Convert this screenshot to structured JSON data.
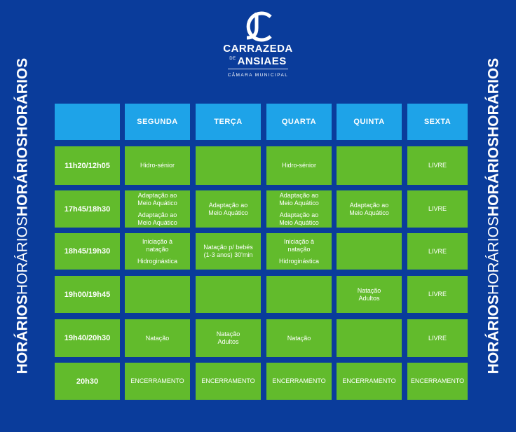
{
  "side_text": {
    "left": [
      "HORÁRIOS",
      "HORÁRIOS",
      "HORÁRIOS",
      "HORÁRIOS"
    ],
    "right": [
      "HORÁRIOS",
      "HORÁRIOS",
      "HORÁRIOS",
      "HORÁRIOS"
    ]
  },
  "logo": {
    "line1": "CARRAZEDA",
    "de": "DE",
    "line2": "ANSIAES",
    "line3": "CÂMARA MUNICIPAL"
  },
  "schedule": {
    "days": [
      "SEGUNDA",
      "TERÇA",
      "QUARTA",
      "QUINTA",
      "SEXTA"
    ],
    "rows": [
      {
        "time": "11h20/12h05",
        "cells": [
          [
            "Hidro-sénior"
          ],
          [],
          [
            "Hidro-sénior"
          ],
          [],
          [
            "LIVRE"
          ]
        ]
      },
      {
        "time": "17h45/18h30",
        "cells": [
          [
            "Adaptação ao\nMeio Aquático",
            "Adaptação ao\nMeio Aquático"
          ],
          [
            "Adaptação ao\nMeio Aquático"
          ],
          [
            "Adaptação ao\nMeio Aquático",
            "Adaptação ao\nMeio Aquático"
          ],
          [
            "Adaptação ao\nMeio Aquático"
          ],
          [
            "LIVRE"
          ]
        ]
      },
      {
        "time": "18h45/19h30",
        "cells": [
          [
            "Iniciação à\nnatação",
            "Hidroginástica"
          ],
          [
            "Natação p/ bebés\n(1-3 anos) 30'min"
          ],
          [
            "Iniciação à\nnatação",
            "Hidroginástica"
          ],
          [],
          [
            "LIVRE"
          ]
        ]
      },
      {
        "time": "19h00/19h45",
        "cells": [
          [],
          [],
          [],
          [
            "Natação\nAdultos"
          ],
          [
            "LIVRE"
          ]
        ]
      },
      {
        "time": "19h40/20h30",
        "cells": [
          [
            "Natação"
          ],
          [
            "Natação\nAdultos"
          ],
          [
            "Natação"
          ],
          [],
          [
            "LIVRE"
          ]
        ]
      },
      {
        "time": "20h30",
        "cells": [
          [
            "ENCERRAMENTO"
          ],
          [
            "ENCERRAMENTO"
          ],
          [
            "ENCERRAMENTO"
          ],
          [
            "ENCERRAMENTO"
          ],
          [
            "ENCERRAMENTO"
          ]
        ]
      }
    ]
  },
  "colors": {
    "background": "#0a3c9b",
    "header": "#1ea3e8",
    "cell": "#62bb2c",
    "text": "#ffffff"
  }
}
